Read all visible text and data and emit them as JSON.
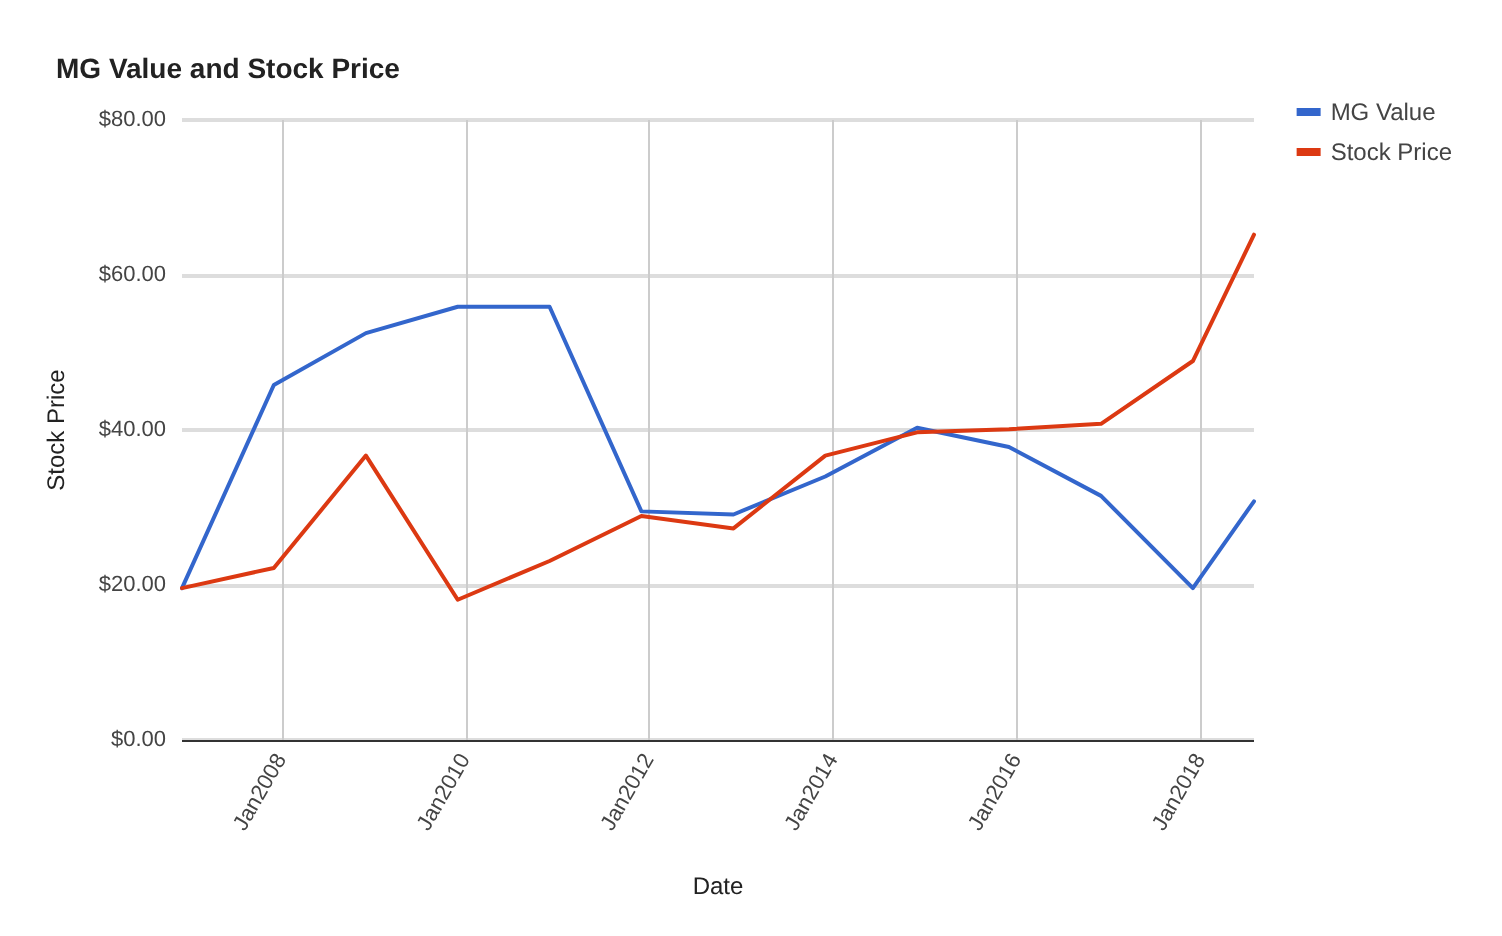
{
  "chart_data": {
    "type": "line",
    "title": "MG Value and Stock Price",
    "xlabel": "Date",
    "ylabel": "Stock Price",
    "x": [
      "2006-12",
      "2007-12",
      "2008-12",
      "2009-12",
      "2010-12",
      "2011-12",
      "2012-12",
      "2013-12",
      "2014-12",
      "2015-12",
      "2016-12",
      "2017-12",
      "2018-08"
    ],
    "series": [
      {
        "name": "MG Value",
        "color": "#3366cc",
        "values": [
          19.6,
          45.8,
          52.5,
          55.9,
          55.9,
          29.5,
          29.1,
          34.0,
          40.3,
          37.8,
          31.5,
          19.6,
          30.8
        ]
      },
      {
        "name": "Stock Price",
        "color": "#dc3912",
        "values": [
          19.6,
          22.2,
          36.7,
          18.1,
          23.1,
          28.9,
          27.3,
          36.7,
          39.7,
          40.1,
          40.8,
          48.9,
          65.2
        ]
      }
    ],
    "xlim": [
      "2006-12",
      "2018-08"
    ],
    "xticks": [
      {
        "value": "2008-01",
        "label": "Jan2008"
      },
      {
        "value": "2010-01",
        "label": "Jan2010"
      },
      {
        "value": "2012-01",
        "label": "Jan2012"
      },
      {
        "value": "2014-01",
        "label": "Jan2014"
      },
      {
        "value": "2016-01",
        "label": "Jan2016"
      },
      {
        "value": "2018-01",
        "label": "Jan2018"
      }
    ],
    "ylim": [
      0,
      80
    ],
    "yticks": [
      {
        "value": 0,
        "label": "$0.00"
      },
      {
        "value": 20,
        "label": "$20.00"
      },
      {
        "value": 40,
        "label": "$40.00"
      },
      {
        "value": 60,
        "label": "$60.00"
      },
      {
        "value": 80,
        "label": "$80.00"
      }
    ],
    "grid": true,
    "legend": "top right",
    "marker": "none",
    "line_style": "solid"
  }
}
